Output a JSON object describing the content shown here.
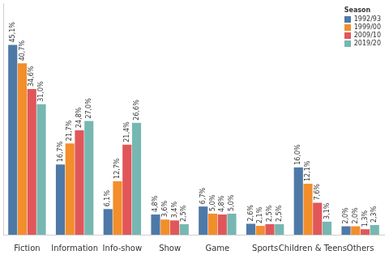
{
  "chart_data": {
    "type": "bar",
    "categories": [
      "Fiction",
      "Information",
      "Info-show",
      "Show",
      "Game",
      "Sports",
      "Children & Teens",
      "Others"
    ],
    "series": [
      {
        "name": "1992/93",
        "color": "#4e79a7",
        "values": [
          45.1,
          16.7,
          6.1,
          4.8,
          6.7,
          2.6,
          16.0,
          2.0
        ],
        "value_labels": [
          "45,1%",
          "16,7%",
          "6,1%",
          "4,8%",
          "6,7%",
          "2,6%",
          "16,0%",
          "2,0%"
        ]
      },
      {
        "name": "1999/00",
        "color": "#f28e2b",
        "values": [
          40.7,
          21.7,
          12.7,
          3.6,
          5.0,
          2.1,
          12.1,
          2.0
        ],
        "value_labels": [
          "40,7%",
          "21,7%",
          "12,7%",
          "3,6%",
          "5,0%",
          "2,1%",
          "12,1%",
          "2,0%"
        ]
      },
      {
        "name": "2009/10",
        "color": "#e15759",
        "values": [
          34.6,
          24.8,
          21.4,
          3.4,
          4.8,
          2.5,
          7.6,
          1.3
        ],
        "value_labels": [
          "34,6%",
          "24,8%",
          "21,4%",
          "3,4%",
          "4,8%",
          "2,5%",
          "7,6%",
          "1,3%"
        ]
      },
      {
        "name": "2019/20",
        "color": "#76b7b2",
        "values": [
          31.0,
          27.0,
          26.6,
          2.5,
          5.0,
          2.5,
          3.1,
          2.3
        ],
        "value_labels": [
          "31,0%",
          "27,0%",
          "26,6%",
          "2,5%",
          "5,0%",
          "2,5%",
          "3,1%",
          "2,3%"
        ]
      }
    ],
    "legend_title": "Season",
    "legend": "top-right",
    "ylim": [
      0,
      55
    ],
    "grid": false,
    "data_labels": true,
    "tick_labels": "x"
  }
}
